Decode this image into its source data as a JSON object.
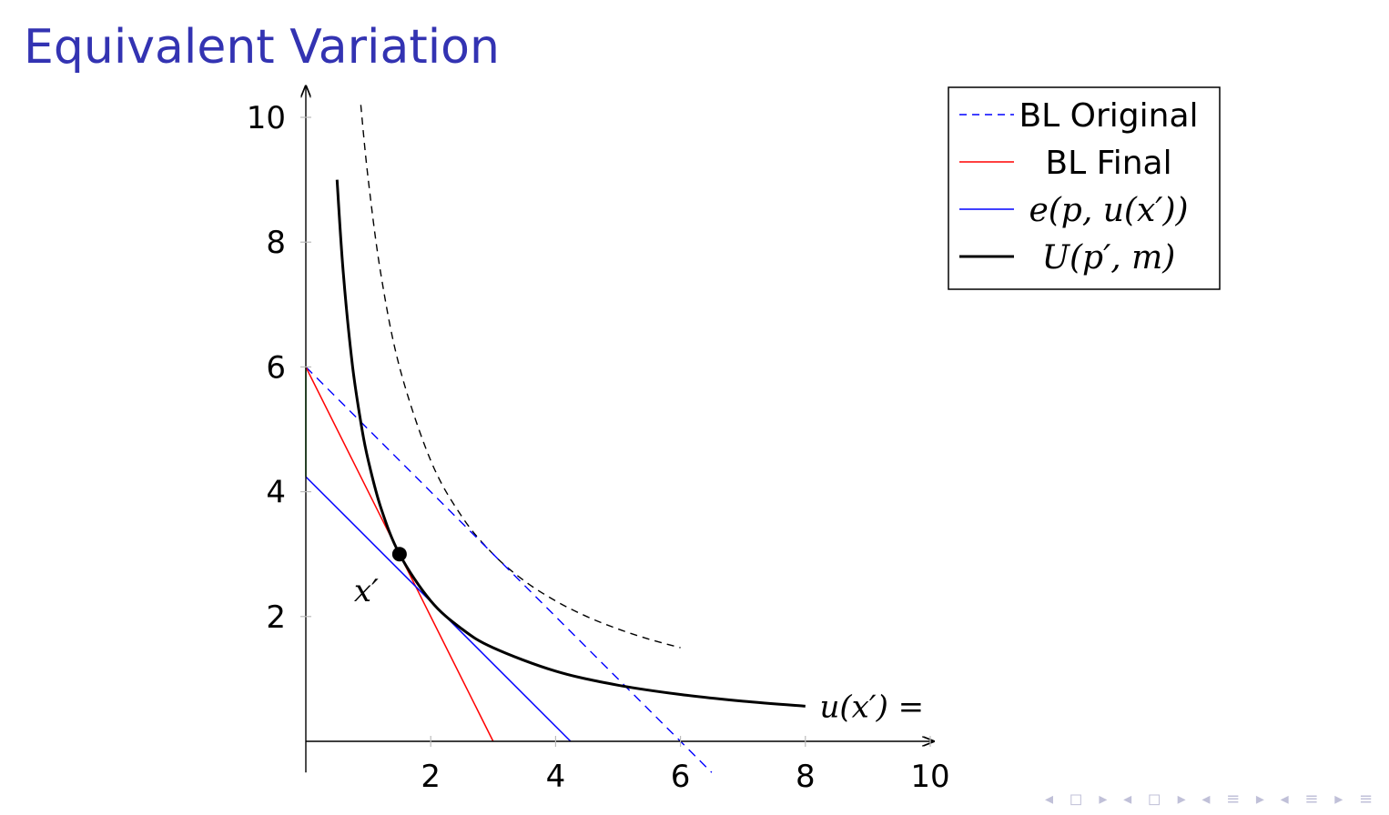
{
  "slide": {
    "title": "Equivalent Variation"
  },
  "chart_data": {
    "type": "line",
    "title": "",
    "xlabel": "",
    "ylabel": "",
    "xlim": [
      0,
      10
    ],
    "ylim": [
      0,
      10
    ],
    "xticks": [
      2,
      4,
      6,
      8,
      10
    ],
    "yticks": [
      2,
      4,
      6,
      8,
      10
    ],
    "grid": false,
    "legend_position": "top-right",
    "legend": [
      "BL Original",
      "BL Final",
      "e(p, u(x′))",
      "U(p′, m)"
    ],
    "series": [
      {
        "name": "BL Original",
        "style": "dashed",
        "color": "#0000ff",
        "x": [
          0,
          6.5
        ],
        "y": [
          6,
          -0.5
        ]
      },
      {
        "name": "BL Final",
        "style": "solid",
        "color": "#ff0000",
        "x": [
          0,
          3
        ],
        "y": [
          6,
          0
        ]
      },
      {
        "name": "e(p, u(x′))",
        "style": "solid",
        "color": "#0000ff",
        "x": [
          0,
          4.24
        ],
        "y": [
          4.24,
          0
        ]
      },
      {
        "name": "U(p′, m)",
        "style": "solid-thick",
        "color": "#000000",
        "x": [
          0.5,
          0.6,
          0.75,
          0.9,
          1.0,
          1.2,
          1.5,
          2.0,
          2.5,
          3.0,
          4.0,
          5.0,
          6.0,
          7.0,
          8.0
        ],
        "y": [
          9.0,
          7.5,
          6.0,
          5.0,
          4.5,
          3.75,
          3.0,
          2.25,
          1.8,
          1.5,
          1.125,
          0.9,
          0.75,
          0.643,
          0.5625
        ]
      }
    ],
    "extra_curve": {
      "style": "dashed",
      "color": "#000000",
      "x": [
        0.88,
        1.0,
        1.2,
        1.5,
        2.0,
        2.5,
        3.0,
        3.5,
        4.0,
        4.5,
        5.0,
        5.5,
        6.0
      ],
      "y": [
        10.2,
        9.0,
        7.5,
        6.0,
        4.5,
        3.6,
        3.0,
        2.571,
        2.25,
        2.0,
        1.8,
        1.636,
        1.5
      ]
    },
    "green_segment": {
      "color": "#00aa00",
      "x": [
        0,
        0
      ],
      "y": [
        4.24,
        6
      ]
    },
    "point": {
      "label": "x′",
      "x": 1.5,
      "y": 3.0
    },
    "annotation": {
      "text": "u(x′) =",
      "x": 8.2,
      "y": 0.56
    }
  },
  "nav": {
    "symbols": "◂ ◻ ▸ ◂ ◻ ▸ ◂ ≡ ▸ ◂ ≡ ▸ ≡ ⟳"
  }
}
